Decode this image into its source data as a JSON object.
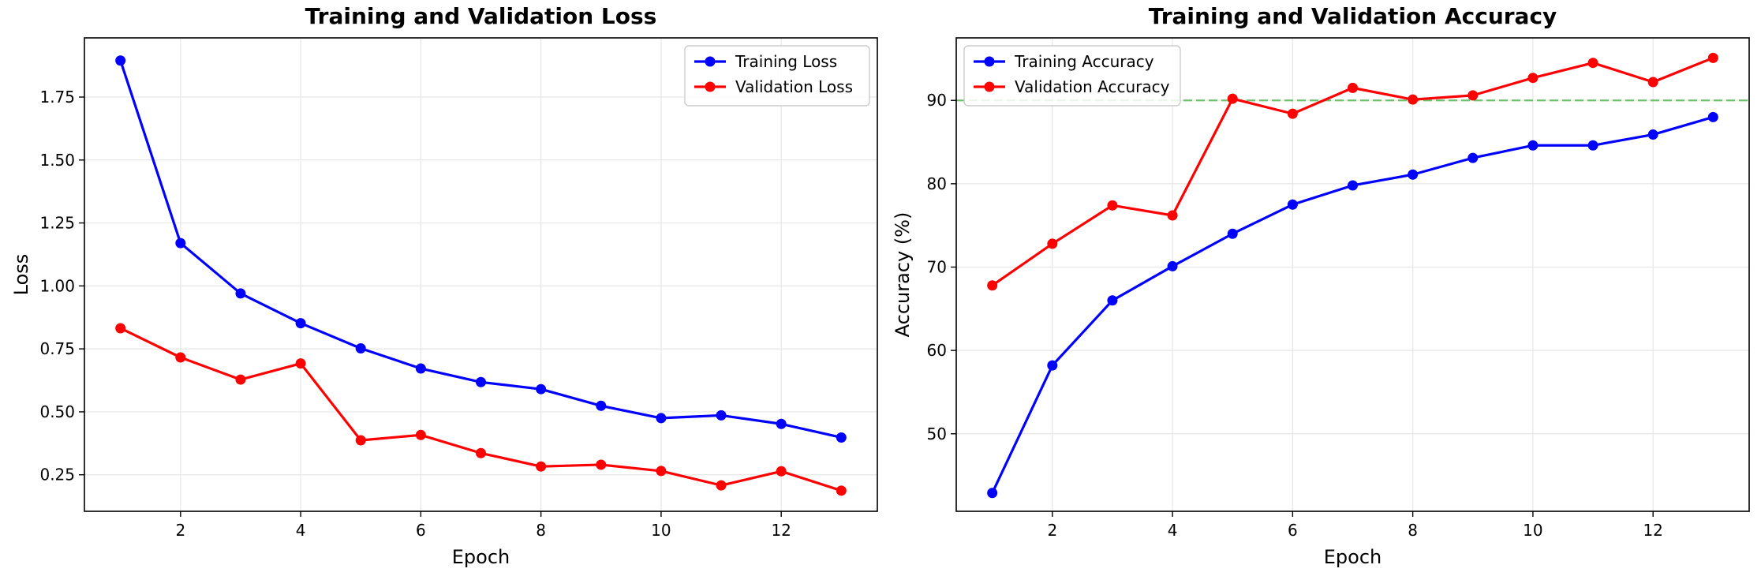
{
  "chart_data": [
    {
      "type": "line",
      "title": "Training and Validation Loss",
      "xlabel": "Epoch",
      "ylabel": "Loss",
      "x": [
        1,
        2,
        3,
        4,
        5,
        6,
        7,
        8,
        9,
        10,
        11,
        12,
        13
      ],
      "xlim": [
        0.4,
        13.6
      ],
      "ylim": [
        0.105,
        1.985
      ],
      "xticks": [
        2,
        4,
        6,
        8,
        10,
        12
      ],
      "xtick_labels": [
        "2",
        "4",
        "6",
        "8",
        "10",
        "12"
      ],
      "yticks": [
        0.25,
        0.5,
        0.75,
        1.0,
        1.25,
        1.5,
        1.75
      ],
      "ytick_labels": [
        "0.25",
        "0.50",
        "0.75",
        "1.00",
        "1.25",
        "1.50",
        "1.75"
      ],
      "grid": true,
      "legend": "top-right",
      "series": [
        {
          "name": "Training Loss",
          "color": "#0000ff",
          "values": [
            1.895,
            1.17,
            0.97,
            0.852,
            0.752,
            0.672,
            0.618,
            0.59,
            0.524,
            0.475,
            0.486,
            0.452,
            0.398
          ]
        },
        {
          "name": "Validation Loss",
          "color": "#ff0000",
          "values": [
            0.832,
            0.716,
            0.628,
            0.692,
            0.387,
            0.408,
            0.336,
            0.283,
            0.29,
            0.265,
            0.208,
            0.264,
            0.187
          ]
        }
      ]
    },
    {
      "type": "line",
      "title": "Training and Validation Accuracy",
      "xlabel": "Epoch",
      "ylabel": "Accuracy (%)",
      "x": [
        1,
        2,
        3,
        4,
        5,
        6,
        7,
        8,
        9,
        10,
        11,
        12,
        13
      ],
      "xlim": [
        0.4,
        13.6
      ],
      "ylim": [
        40.7,
        97.5
      ],
      "xticks": [
        2,
        4,
        6,
        8,
        10,
        12
      ],
      "xtick_labels": [
        "2",
        "4",
        "6",
        "8",
        "10",
        "12"
      ],
      "yticks": [
        50,
        60,
        70,
        80,
        90
      ],
      "ytick_labels": [
        "50",
        "60",
        "70",
        "80",
        "90"
      ],
      "grid": true,
      "legend": "top-left",
      "reference_line": {
        "y": 90,
        "color": "#5cb85c",
        "style": "dashed"
      },
      "series": [
        {
          "name": "Training Accuracy",
          "color": "#0000ff",
          "values": [
            42.9,
            58.2,
            66.0,
            70.1,
            74.0,
            77.5,
            79.8,
            81.1,
            83.1,
            84.6,
            84.6,
            85.9,
            88.0
          ]
        },
        {
          "name": "Validation Accuracy",
          "color": "#ff0000",
          "values": [
            67.8,
            72.8,
            77.4,
            76.2,
            90.2,
            88.4,
            91.5,
            90.1,
            90.6,
            92.7,
            94.5,
            92.2,
            95.1
          ]
        }
      ]
    }
  ]
}
